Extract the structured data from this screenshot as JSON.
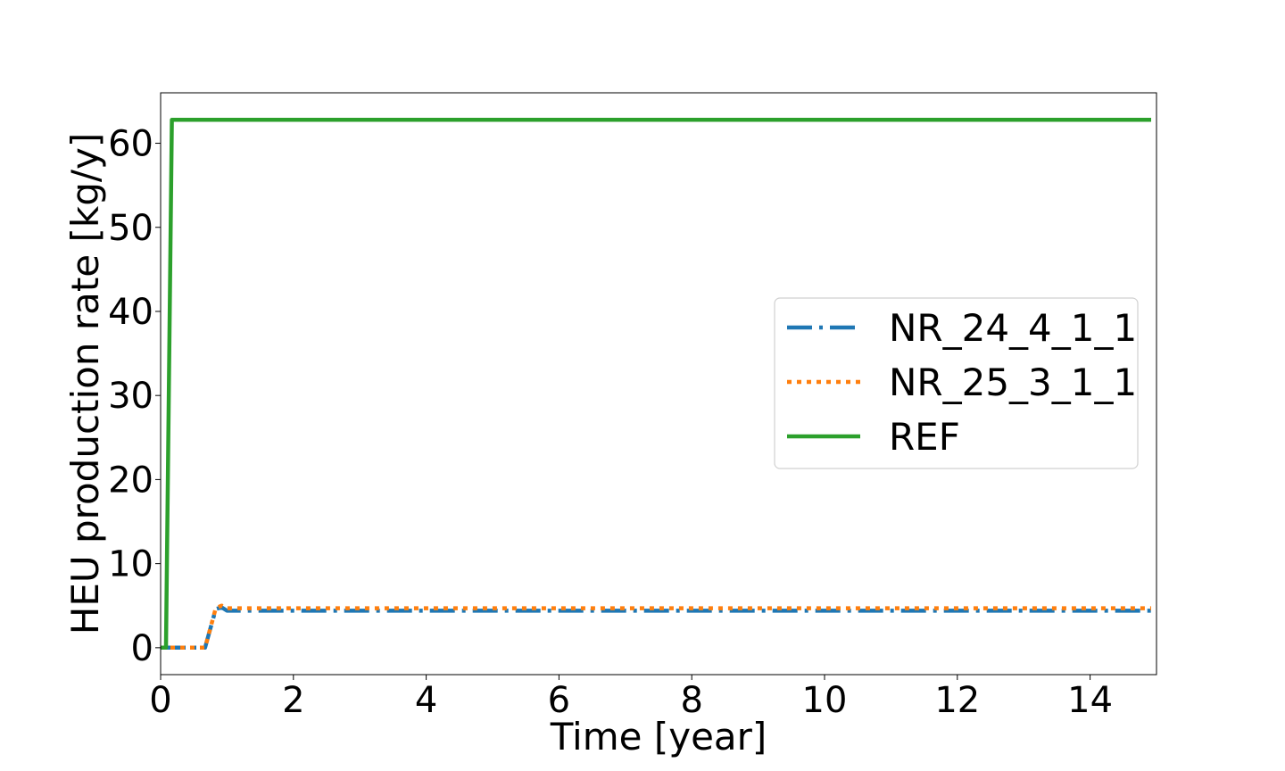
{
  "chart_data": {
    "type": "line",
    "title": "",
    "xlabel": "Time [year]",
    "ylabel": "HEU production rate [kg/y]",
    "xlim": [
      0,
      15
    ],
    "ylim": [
      -3.2,
      66
    ],
    "xticks": [
      0,
      2,
      4,
      6,
      8,
      10,
      12,
      14
    ],
    "yticks": [
      0,
      10,
      20,
      30,
      40,
      50,
      60
    ],
    "grid": false,
    "legend_position": "center-right",
    "series": [
      {
        "name": "NR_24_4_1_1",
        "color": "#1f77b4",
        "style": "dashdot",
        "x": [
          0,
          0.67,
          0.83,
          0.92,
          1.0,
          14.92
        ],
        "y": [
          0,
          0,
          4.6,
          4.8,
          4.4,
          4.4
        ]
      },
      {
        "name": "NR_25_3_1_1",
        "color": "#ff7f0e",
        "style": "dotted",
        "x": [
          0,
          0.67,
          0.83,
          0.92,
          1.0,
          14.92
        ],
        "y": [
          0,
          0,
          4.7,
          5.0,
          4.7,
          4.7
        ]
      },
      {
        "name": "REF",
        "color": "#2ca02c",
        "style": "solid",
        "x": [
          0,
          0.08,
          0.17,
          14.92
        ],
        "y": [
          0,
          0,
          62.8,
          62.8
        ]
      }
    ]
  }
}
